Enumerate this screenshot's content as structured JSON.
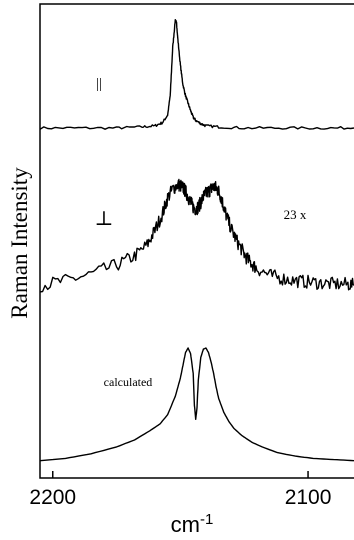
{
  "chart_data": {
    "type": "line",
    "title": "",
    "xlabel": "cm",
    "xlabel_superscript": "-1",
    "ylabel": "Raman Intensity",
    "x_tick_labels": [
      "2200",
      "2100"
    ],
    "x_ticks": [
      2200,
      2100
    ],
    "xlim": [
      2205,
      2082
    ],
    "x_axis_reversed": true,
    "y_tick_labels": [],
    "grid": false,
    "legend": "none",
    "panels": [
      {
        "label": "||",
        "annotation": "",
        "series": [
          {
            "x": [
              2205,
              2190,
              2175,
              2165,
              2160,
              2157,
              2155,
              2154,
              2153,
              2152,
              2151.5,
              2151,
              2150,
              2149,
              2148,
              2147,
              2146,
              2145,
              2144,
              2142,
              2140,
              2135,
              2125,
              2110,
              2095,
              2082
            ],
            "y": [
              0.0,
              0.0,
              0.0,
              0.01,
              0.02,
              0.05,
              0.12,
              0.3,
              0.75,
              1.0,
              0.97,
              0.82,
              0.58,
              0.4,
              0.3,
              0.23,
              0.16,
              0.1,
              0.07,
              0.04,
              0.02,
              0.01,
              0.0,
              0.0,
              0.0,
              0.0
            ]
          }
        ]
      },
      {
        "label": "⊥",
        "annotation": "23 x",
        "series": [
          {
            "x": [
              2205,
              2195,
              2185,
              2175,
              2168,
              2163,
              2160,
              2157,
              2155,
              2153,
              2151,
              2150,
              2149,
              2148,
              2147,
              2146,
              2145,
              2144,
              2143,
              2142,
              2141,
              2140,
              2139,
              2138,
              2137,
              2136,
              2135,
              2134,
              2133,
              2132,
              2130,
              2128,
              2126,
              2124,
              2122,
              2120,
              2115,
              2110,
              2105,
              2100,
              2095,
              2090,
              2085,
              2082
            ],
            "y": [
              0.06,
              0.1,
              0.16,
              0.24,
              0.32,
              0.42,
              0.55,
              0.7,
              0.84,
              0.92,
              0.96,
              0.95,
              0.93,
              0.9,
              0.85,
              0.8,
              0.76,
              0.74,
              0.76,
              0.8,
              0.85,
              0.88,
              0.9,
              0.92,
              0.94,
              0.93,
              0.9,
              0.84,
              0.76,
              0.68,
              0.56,
              0.46,
              0.38,
              0.3,
              0.25,
              0.21,
              0.15,
              0.12,
              0.1,
              0.09,
              0.08,
              0.07,
              0.07,
              0.06
            ]
          }
        ]
      },
      {
        "label": "calculated",
        "annotation": "",
        "series": [
          {
            "x": [
              2205,
              2195,
              2185,
              2175,
              2168,
              2162,
              2158,
              2155,
              2152,
              2150,
              2149,
              2148,
              2147,
              2146,
              2145,
              2144.5,
              2144,
              2143.5,
              2143,
              2142,
              2141,
              2140,
              2139,
              2138,
              2137,
              2136,
              2135,
              2133,
              2131,
              2129,
              2126,
              2122,
              2118,
              2112,
              2105,
              2098,
              2090,
              2082
            ],
            "y": [
              0.02,
              0.04,
              0.08,
              0.14,
              0.2,
              0.28,
              0.34,
              0.42,
              0.58,
              0.74,
              0.85,
              0.96,
              1.0,
              0.95,
              0.78,
              0.5,
              0.38,
              0.48,
              0.72,
              0.92,
              0.99,
              1.0,
              0.96,
              0.88,
              0.78,
              0.66,
              0.56,
              0.44,
              0.36,
              0.3,
              0.24,
              0.18,
              0.14,
              0.09,
              0.06,
              0.04,
              0.03,
              0.02
            ]
          }
        ]
      }
    ]
  }
}
